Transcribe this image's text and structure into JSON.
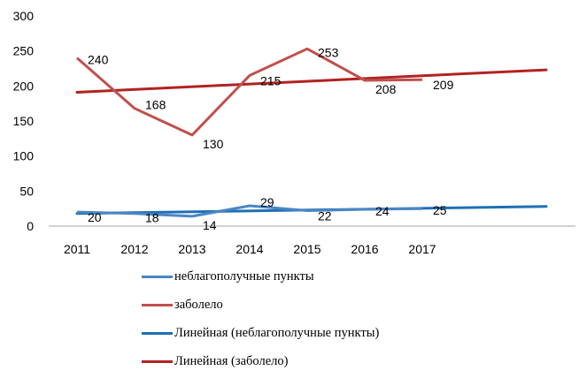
{
  "chart_data": {
    "type": "line",
    "title": "",
    "xlabel": "",
    "ylabel": "",
    "categories": [
      "2011",
      "2012",
      "2013",
      "2014",
      "2015",
      "2016",
      "2017"
    ],
    "ylim": [
      0,
      300
    ],
    "yticks": [
      "0",
      "50",
      "100",
      "150",
      "200",
      "250",
      "300"
    ],
    "grid": false,
    "legend_position": "bottom",
    "series": [
      {
        "name": "неблагополучные пункты",
        "values": [
          20,
          18,
          14,
          29,
          22,
          24,
          25
        ],
        "color": "#4a86c5",
        "data_labels": [
          "20",
          "18",
          "14",
          "29",
          "22",
          "24",
          "25"
        ]
      },
      {
        "name": "заболело",
        "values": [
          240,
          168,
          130,
          215,
          253,
          208,
          209
        ],
        "color": "#c0504d",
        "data_labels": [
          "240",
          "168",
          "130",
          "215",
          "253",
          "208",
          "209"
        ]
      }
    ],
    "trendlines": [
      {
        "name": "Линейная (неблагополучные пункты)",
        "color": "#1f6fb5",
        "start": 18,
        "end": 28
      },
      {
        "name": "Линейная (заболело)",
        "color": "#b22222",
        "start": 191,
        "end": 223
      }
    ]
  }
}
